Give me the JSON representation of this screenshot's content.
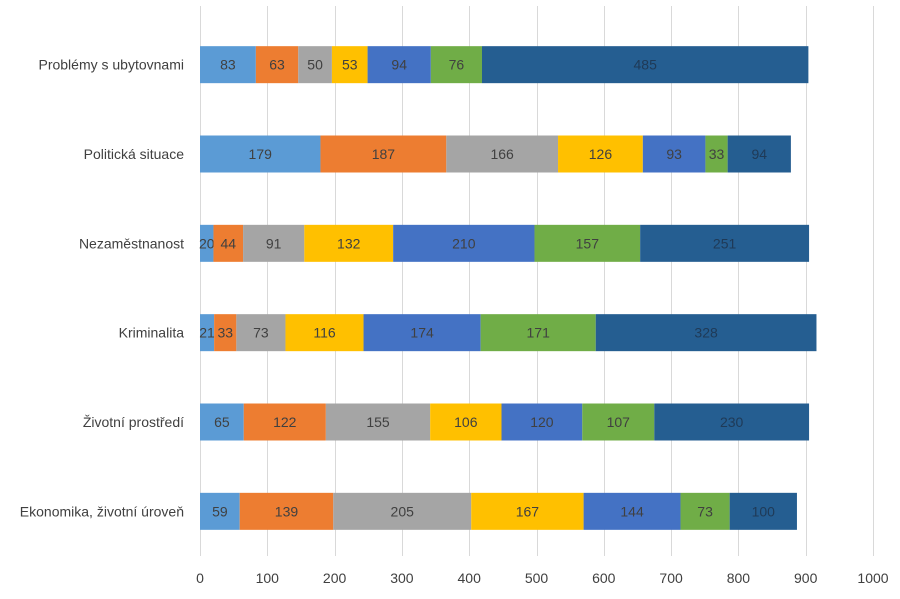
{
  "chart_data": {
    "type": "bar",
    "orientation": "horizontal",
    "stacked": true,
    "categories": [
      "Problémy s ubytovnami",
      "Politická situace",
      "Nezaměstnanost",
      "Kriminalita",
      "Životní prostředí",
      "Ekonomika, životní úroveň"
    ],
    "series": [
      {
        "color": "#5b9bd5",
        "values": [
          83,
          179,
          20,
          21,
          65,
          59
        ]
      },
      {
        "color": "#ed7d31",
        "values": [
          63,
          187,
          44,
          33,
          122,
          139
        ]
      },
      {
        "color": "#a5a5a5",
        "values": [
          50,
          166,
          91,
          73,
          155,
          205
        ]
      },
      {
        "color": "#ffc000",
        "values": [
          53,
          126,
          132,
          116,
          106,
          167
        ]
      },
      {
        "color": "#4472c4",
        "values": [
          94,
          93,
          210,
          174,
          120,
          144
        ]
      },
      {
        "color": "#70ad47",
        "values": [
          76,
          33,
          157,
          171,
          107,
          73
        ]
      },
      {
        "color": "#255e91",
        "values": [
          485,
          94,
          251,
          328,
          230,
          100
        ]
      }
    ],
    "xlim": [
      0,
      1000
    ],
    "xticks": [
      0,
      100,
      200,
      300,
      400,
      500,
      600,
      700,
      800,
      900,
      1000
    ],
    "grid": true,
    "legend": false,
    "data_labels": true
  }
}
